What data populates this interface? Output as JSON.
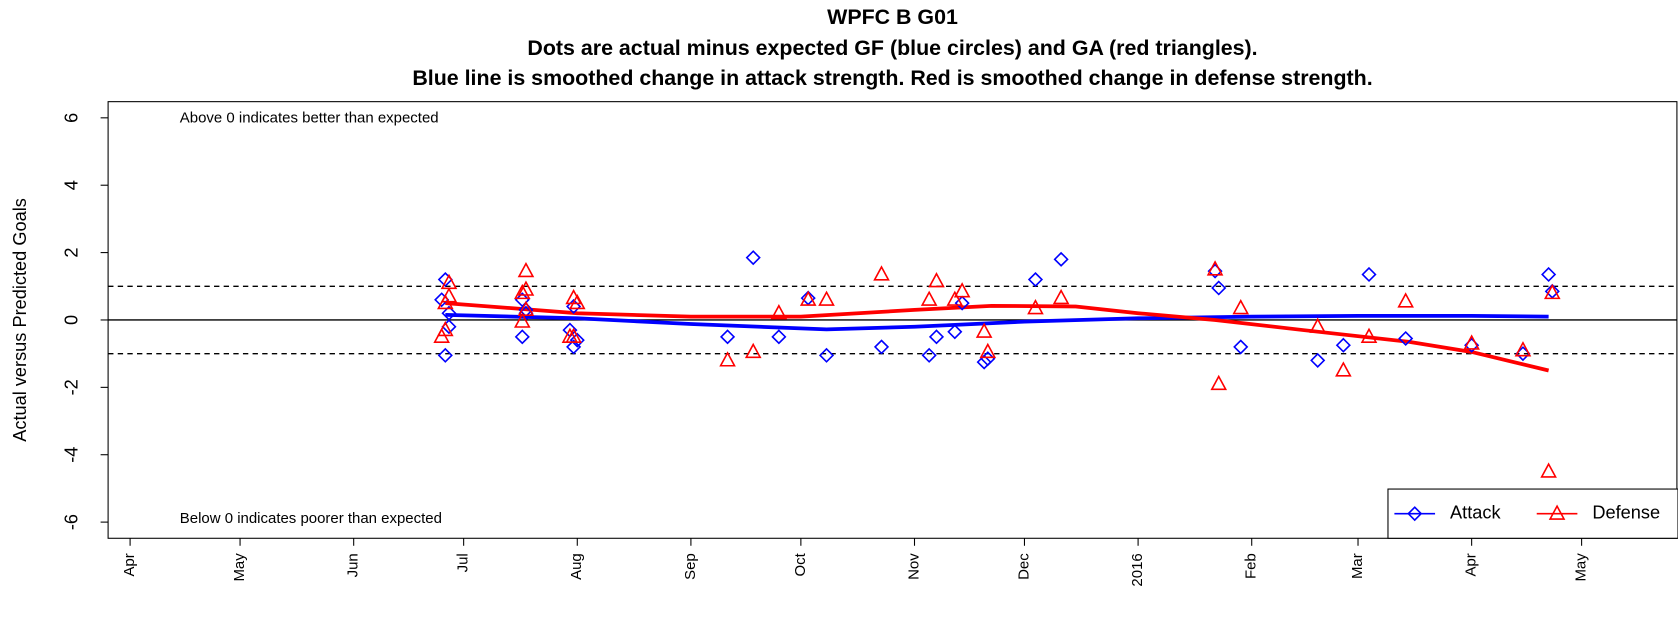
{
  "chart_data": {
    "type": "scatter",
    "title": "WPFC B G01",
    "subtitle": [
      "Dots are actual minus expected GF (blue circles) and GA (red triangles).",
      "Blue line is smoothed change in attack strength. Red is smoothed change in defense strength."
    ],
    "y_label": "Actual versus Predicted Goals",
    "annotations": [
      "Above 0 indicates better than expected",
      "Below 0 indicates poorer than expected"
    ],
    "xlim": [
      "2015-03-26",
      "2016-05-27"
    ],
    "xticks": [
      {
        "value": "2015-04-01",
        "label": "Apr"
      },
      {
        "value": "2015-05-01",
        "label": "May"
      },
      {
        "value": "2015-06-01",
        "label": "Jun"
      },
      {
        "value": "2015-07-01",
        "label": "Jul"
      },
      {
        "value": "2015-08-01",
        "label": "Aug"
      },
      {
        "value": "2015-09-01",
        "label": "Sep"
      },
      {
        "value": "2015-10-01",
        "label": "Oct"
      },
      {
        "value": "2015-11-01",
        "label": "Nov"
      },
      {
        "value": "2015-12-01",
        "label": "Dec"
      },
      {
        "value": "2016-01-01",
        "label": "2016"
      },
      {
        "value": "2016-02-01",
        "label": "Feb"
      },
      {
        "value": "2016-03-01",
        "label": "Mar"
      },
      {
        "value": "2016-04-01",
        "label": "Apr"
      },
      {
        "value": "2016-05-01",
        "label": "May"
      }
    ],
    "ylim": [
      -6.48,
      6.48
    ],
    "yticks": [
      -6,
      -4,
      -2,
      0,
      2,
      4,
      6
    ],
    "hlines": [
      {
        "y": 1,
        "style": "dashed"
      },
      {
        "y": 0,
        "style": "solid"
      },
      {
        "y": -1,
        "style": "dashed"
      }
    ],
    "legend": "bottom-right",
    "series": [
      {
        "name": "Attack",
        "color": "#0000ff",
        "marker": "diamond",
        "x": [
          "2015-06-25",
          "2015-06-26",
          "2015-06-27",
          "2015-06-27",
          "2015-06-26",
          "2015-07-17",
          "2015-07-18",
          "2015-07-18",
          "2015-07-17",
          "2015-07-31",
          "2015-07-30",
          "2015-07-31",
          "2015-08-01",
          "2015-09-11",
          "2015-09-18",
          "2015-09-25",
          "2015-10-03",
          "2015-10-08",
          "2015-10-23",
          "2015-11-05",
          "2015-11-07",
          "2015-11-12",
          "2015-11-14",
          "2015-11-20",
          "2015-11-21",
          "2015-12-04",
          "2015-12-11",
          "2016-01-22",
          "2016-01-23",
          "2016-01-29",
          "2016-02-19",
          "2016-02-26",
          "2016-03-04",
          "2016-03-14",
          "2016-04-01",
          "2016-04-15",
          "2016-04-22",
          "2016-04-23"
        ],
        "values": [
          0.6,
          1.2,
          0.2,
          -0.2,
          -1.05,
          0.6,
          0.3,
          0.2,
          -0.5,
          0.4,
          -0.3,
          -0.8,
          -0.6,
          -0.5,
          1.85,
          -0.5,
          0.65,
          -1.05,
          -0.8,
          -1.05,
          -0.5,
          -0.35,
          0.5,
          -1.25,
          -1.15,
          1.2,
          1.8,
          1.45,
          0.95,
          -0.8,
          -1.2,
          -0.75,
          1.35,
          -0.55,
          -0.75,
          -1.0,
          1.35,
          0.85
        ]
      },
      {
        "name": "Defense",
        "color": "#ff0000",
        "marker": "triangle",
        "x": [
          "2015-06-25",
          "2015-06-26",
          "2015-06-27",
          "2015-06-27",
          "2015-06-26",
          "2015-07-18",
          "2015-07-17",
          "2015-07-18",
          "2015-07-17",
          "2015-07-18",
          "2015-07-31",
          "2015-08-01",
          "2015-07-30",
          "2015-07-31",
          "2015-09-11",
          "2015-09-18",
          "2015-09-25",
          "2015-10-03",
          "2015-10-08",
          "2015-10-23",
          "2015-11-05",
          "2015-11-07",
          "2015-11-12",
          "2015-11-14",
          "2015-11-20",
          "2015-11-21",
          "2015-12-04",
          "2015-12-11",
          "2016-01-22",
          "2016-01-23",
          "2016-01-29",
          "2016-02-19",
          "2016-02-26",
          "2016-03-04",
          "2016-03-14",
          "2016-04-01",
          "2016-04-15",
          "2016-04-22",
          "2016-04-23"
        ],
        "values": [
          -0.5,
          -0.3,
          0.7,
          1.1,
          0.5,
          1.45,
          0.8,
          0.9,
          -0.05,
          0.3,
          0.65,
          0.5,
          -0.5,
          -0.5,
          -1.2,
          -0.95,
          0.2,
          0.6,
          0.6,
          1.35,
          0.6,
          1.15,
          0.6,
          0.85,
          -0.35,
          -0.95,
          0.35,
          0.65,
          1.5,
          -1.9,
          0.35,
          -0.2,
          -1.5,
          -0.5,
          0.55,
          -0.7,
          -0.9,
          -4.5,
          0.8
        ]
      }
    ],
    "smooth": [
      {
        "color": "#0000ff",
        "x": [
          "2015-06-26",
          "2015-08-01",
          "2015-09-01",
          "2015-10-08",
          "2015-11-01",
          "2015-12-01",
          "2016-01-01",
          "2016-02-01",
          "2016-03-01",
          "2016-04-01",
          "2016-04-22"
        ],
        "values": [
          0.15,
          0.05,
          -0.12,
          -0.28,
          -0.2,
          -0.05,
          0.05,
          0.1,
          0.12,
          0.12,
          0.1
        ]
      },
      {
        "color": "#ff0000",
        "x": [
          "2015-06-26",
          "2015-08-01",
          "2015-09-01",
          "2015-10-01",
          "2015-11-01",
          "2015-11-22",
          "2015-12-15",
          "2016-01-01",
          "2016-01-22",
          "2016-02-15",
          "2016-03-15",
          "2016-04-01",
          "2016-04-22"
        ],
        "values": [
          0.5,
          0.2,
          0.1,
          0.1,
          0.3,
          0.42,
          0.4,
          0.2,
          0.0,
          -0.3,
          -0.65,
          -0.95,
          -1.5
        ]
      }
    ]
  }
}
